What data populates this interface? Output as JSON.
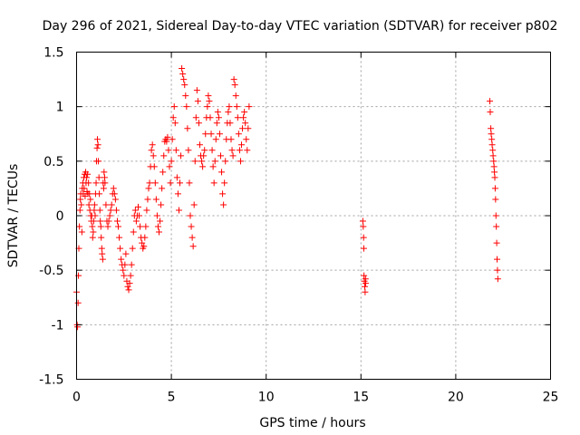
{
  "chart_data": {
    "type": "scatter",
    "title": "Day 296 of 2021, Sidereal Day-to-day VTEC variation (SDTVAR) for receiver p802",
    "xlabel": "GPS time / hours",
    "ylabel": "SDTVAR / TECUs",
    "xlim": [
      0,
      25
    ],
    "ylim": [
      -1.5,
      1.5
    ],
    "xticks": [
      0,
      5,
      10,
      15,
      20,
      25
    ],
    "xtick_labels": [
      "0",
      "5",
      "10",
      "15",
      "20",
      "25"
    ],
    "yticks": [
      -1.5,
      -1,
      -0.5,
      0,
      0.5,
      1,
      1.5
    ],
    "ytick_labels": [
      "-1.5",
      "-1",
      "-0.5",
      "0",
      "0.5",
      "1",
      "1.5"
    ],
    "grid": true,
    "marker": "+",
    "color": "#ff0000",
    "series": [
      {
        "name": "SDTVAR",
        "points": [
          [
            0.0,
            -0.7
          ],
          [
            0.03,
            -1.0
          ],
          [
            0.05,
            -1.02
          ],
          [
            0.08,
            -0.8
          ],
          [
            0.1,
            -0.55
          ],
          [
            0.12,
            -0.3
          ],
          [
            0.15,
            -0.1
          ],
          [
            0.18,
            0.05
          ],
          [
            0.2,
            0.15
          ],
          [
            0.22,
            0.2
          ],
          [
            0.25,
            0.1
          ],
          [
            0.28,
            -0.15
          ],
          [
            0.3,
            0.25
          ],
          [
            0.33,
            0.3
          ],
          [
            0.35,
            0.2
          ],
          [
            0.38,
            0.35
          ],
          [
            0.4,
            0.25
          ],
          [
            0.43,
            0.38
          ],
          [
            0.45,
            0.18
          ],
          [
            0.48,
            0.4
          ],
          [
            0.5,
            0.3
          ],
          [
            0.53,
            0.35
          ],
          [
            0.55,
            0.22
          ],
          [
            0.58,
            0.38
          ],
          [
            0.6,
            0.2
          ],
          [
            0.63,
            0.3
          ],
          [
            0.65,
            0.1
          ],
          [
            0.68,
            0.2
          ],
          [
            0.7,
            0.05
          ],
          [
            0.73,
            0.15
          ],
          [
            0.75,
            0.0
          ],
          [
            0.78,
            -0.05
          ],
          [
            0.8,
            0.0
          ],
          [
            0.83,
            -0.1
          ],
          [
            0.85,
            -0.2
          ],
          [
            0.88,
            -0.15
          ],
          [
            0.9,
            -0.05
          ],
          [
            0.93,
            0.05
          ],
          [
            0.95,
            0.1
          ],
          [
            0.98,
            0.0
          ],
          [
            1.0,
            0.2
          ],
          [
            1.03,
            0.3
          ],
          [
            1.05,
            0.5
          ],
          [
            1.08,
            0.62
          ],
          [
            1.1,
            0.7
          ],
          [
            1.13,
            0.65
          ],
          [
            1.15,
            0.5
          ],
          [
            1.18,
            0.35
          ],
          [
            1.2,
            0.2
          ],
          [
            1.23,
            0.05
          ],
          [
            1.25,
            -0.05
          ],
          [
            1.28,
            -0.1
          ],
          [
            1.3,
            -0.2
          ],
          [
            1.33,
            -0.3
          ],
          [
            1.35,
            -0.35
          ],
          [
            1.38,
            -0.4
          ],
          [
            1.4,
            0.3
          ],
          [
            1.43,
            0.25
          ],
          [
            1.45,
            0.4
          ],
          [
            1.48,
            0.35
          ],
          [
            1.5,
            0.3
          ],
          [
            1.55,
            0.1
          ],
          [
            1.6,
            -0.05
          ],
          [
            1.65,
            -0.1
          ],
          [
            1.7,
            -0.05
          ],
          [
            1.75,
            0.0
          ],
          [
            1.8,
            0.05
          ],
          [
            1.85,
            0.1
          ],
          [
            1.9,
            0.2
          ],
          [
            1.95,
            0.25
          ],
          [
            2.0,
            0.2
          ],
          [
            2.05,
            0.15
          ],
          [
            2.1,
            0.05
          ],
          [
            2.15,
            -0.05
          ],
          [
            2.2,
            -0.1
          ],
          [
            2.25,
            -0.2
          ],
          [
            2.3,
            -0.3
          ],
          [
            2.35,
            -0.4
          ],
          [
            2.4,
            -0.45
          ],
          [
            2.45,
            -0.5
          ],
          [
            2.5,
            -0.55
          ],
          [
            2.55,
            -0.45
          ],
          [
            2.6,
            -0.35
          ],
          [
            2.65,
            -0.6
          ],
          [
            2.7,
            -0.65
          ],
          [
            2.75,
            -0.68
          ],
          [
            2.8,
            -0.62
          ],
          [
            2.85,
            -0.55
          ],
          [
            2.9,
            -0.45
          ],
          [
            2.95,
            -0.3
          ],
          [
            3.0,
            -0.15
          ],
          [
            3.05,
            0.0
          ],
          [
            3.1,
            0.05
          ],
          [
            3.15,
            -0.05
          ],
          [
            3.2,
            0.0
          ],
          [
            3.25,
            0.08
          ],
          [
            3.3,
            0.0
          ],
          [
            3.35,
            -0.1
          ],
          [
            3.4,
            -0.2
          ],
          [
            3.45,
            -0.25
          ],
          [
            3.5,
            -0.3
          ],
          [
            3.55,
            -0.28
          ],
          [
            3.6,
            -0.2
          ],
          [
            3.65,
            -0.1
          ],
          [
            3.7,
            0.05
          ],
          [
            3.75,
            0.15
          ],
          [
            3.8,
            0.25
          ],
          [
            3.85,
            0.3
          ],
          [
            3.9,
            0.45
          ],
          [
            3.95,
            0.6
          ],
          [
            4.0,
            0.65
          ],
          [
            4.05,
            0.55
          ],
          [
            4.1,
            0.45
          ],
          [
            4.15,
            0.3
          ],
          [
            4.2,
            0.15
          ],
          [
            4.25,
            0.0
          ],
          [
            4.3,
            -0.1
          ],
          [
            4.35,
            -0.15
          ],
          [
            4.4,
            -0.05
          ],
          [
            4.45,
            0.1
          ],
          [
            4.5,
            0.25
          ],
          [
            4.55,
            0.4
          ],
          [
            4.6,
            0.55
          ],
          [
            4.65,
            0.68
          ],
          [
            4.7,
            0.7
          ],
          [
            4.75,
            0.68
          ],
          [
            4.8,
            0.72
          ],
          [
            4.85,
            0.6
          ],
          [
            4.9,
            0.45
          ],
          [
            4.95,
            0.3
          ],
          [
            5.0,
            0.5
          ],
          [
            5.05,
            0.7
          ],
          [
            5.1,
            0.9
          ],
          [
            5.15,
            1.0
          ],
          [
            5.2,
            0.85
          ],
          [
            5.25,
            0.6
          ],
          [
            5.3,
            0.35
          ],
          [
            5.35,
            0.2
          ],
          [
            5.4,
            0.05
          ],
          [
            5.45,
            0.3
          ],
          [
            5.5,
            0.55
          ],
          [
            5.55,
            1.35
          ],
          [
            5.6,
            1.3
          ],
          [
            5.65,
            1.25
          ],
          [
            5.7,
            1.2
          ],
          [
            5.75,
            1.1
          ],
          [
            5.8,
            1.0
          ],
          [
            5.85,
            0.8
          ],
          [
            5.9,
            0.6
          ],
          [
            5.95,
            0.3
          ],
          [
            6.0,
            0.0
          ],
          [
            6.05,
            -0.1
          ],
          [
            6.1,
            -0.2
          ],
          [
            6.15,
            -0.28
          ],
          [
            6.2,
            0.1
          ],
          [
            6.25,
            0.5
          ],
          [
            6.3,
            0.9
          ],
          [
            6.35,
            1.15
          ],
          [
            6.4,
            1.05
          ],
          [
            6.45,
            0.85
          ],
          [
            6.5,
            0.65
          ],
          [
            6.55,
            0.55
          ],
          [
            6.6,
            0.5
          ],
          [
            6.65,
            0.45
          ],
          [
            6.7,
            0.55
          ],
          [
            6.75,
            0.6
          ],
          [
            6.8,
            0.75
          ],
          [
            6.85,
            0.9
          ],
          [
            6.9,
            1.0
          ],
          [
            6.95,
            1.1
          ],
          [
            7.0,
            1.05
          ],
          [
            7.05,
            0.9
          ],
          [
            7.1,
            0.75
          ],
          [
            7.15,
            0.6
          ],
          [
            7.2,
            0.45
          ],
          [
            7.25,
            0.3
          ],
          [
            7.3,
            0.5
          ],
          [
            7.35,
            0.7
          ],
          [
            7.4,
            0.85
          ],
          [
            7.45,
            0.95
          ],
          [
            7.5,
            0.9
          ],
          [
            7.55,
            0.75
          ],
          [
            7.6,
            0.55
          ],
          [
            7.65,
            0.4
          ],
          [
            7.7,
            0.2
          ],
          [
            7.75,
            0.1
          ],
          [
            7.8,
            0.3
          ],
          [
            7.85,
            0.5
          ],
          [
            7.9,
            0.7
          ],
          [
            7.95,
            0.85
          ],
          [
            8.0,
            0.95
          ],
          [
            8.05,
            1.0
          ],
          [
            8.1,
            0.85
          ],
          [
            8.15,
            0.7
          ],
          [
            8.2,
            0.6
          ],
          [
            8.25,
            0.55
          ],
          [
            8.3,
            1.25
          ],
          [
            8.35,
            1.2
          ],
          [
            8.4,
            1.1
          ],
          [
            8.45,
            1.0
          ],
          [
            8.5,
            0.9
          ],
          [
            8.55,
            0.75
          ],
          [
            8.6,
            0.6
          ],
          [
            8.65,
            0.5
          ],
          [
            8.7,
            0.65
          ],
          [
            8.75,
            0.8
          ],
          [
            8.8,
            0.9
          ],
          [
            8.85,
            0.95
          ],
          [
            8.9,
            0.85
          ],
          [
            8.95,
            0.7
          ],
          [
            9.0,
            0.6
          ],
          [
            9.05,
            0.8
          ],
          [
            9.1,
            1.0
          ],
          [
            15.1,
            -0.05
          ],
          [
            15.12,
            -0.1
          ],
          [
            15.14,
            -0.2
          ],
          [
            15.15,
            -0.3
          ],
          [
            15.16,
            -0.55
          ],
          [
            15.18,
            -0.6
          ],
          [
            15.2,
            -0.65
          ],
          [
            15.22,
            -0.7
          ],
          [
            15.24,
            -0.58
          ],
          [
            15.25,
            -0.62
          ],
          [
            21.8,
            1.05
          ],
          [
            21.82,
            0.95
          ],
          [
            21.85,
            0.8
          ],
          [
            21.87,
            0.75
          ],
          [
            21.9,
            0.7
          ],
          [
            21.92,
            0.65
          ],
          [
            21.95,
            0.6
          ],
          [
            21.97,
            0.55
          ],
          [
            22.0,
            0.5
          ],
          [
            22.02,
            0.45
          ],
          [
            22.04,
            0.4
          ],
          [
            22.06,
            0.35
          ],
          [
            22.08,
            0.25
          ],
          [
            22.1,
            0.15
          ],
          [
            22.12,
            0.0
          ],
          [
            22.14,
            -0.1
          ],
          [
            22.16,
            -0.25
          ],
          [
            22.18,
            -0.4
          ],
          [
            22.2,
            -0.5
          ],
          [
            22.22,
            -0.58
          ]
        ]
      }
    ]
  }
}
